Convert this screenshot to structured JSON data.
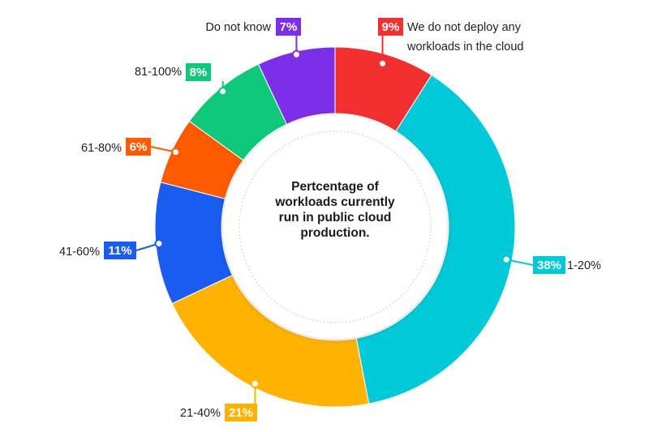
{
  "chart_data": {
    "type": "pie",
    "title": "Pertcentage of workloads currently run in public cloud production.",
    "title_lines": [
      "Pertcentage of",
      "workloads currently",
      "run in public cloud",
      "production."
    ],
    "categories": [
      "We do not deploy any workloads in the cloud",
      "1-20%",
      "21-40%",
      "41-60%",
      "61-80%",
      "81-100%",
      "Do not know"
    ],
    "values": [
      9,
      38,
      21,
      11,
      6,
      8,
      7
    ],
    "value_labels": [
      "9%",
      "38%",
      "21%",
      "11%",
      "6%",
      "8%",
      "7%"
    ],
    "label_lines": [
      [
        "We do not deploy any",
        "workloads in the cloud"
      ],
      [
        "1-20%"
      ],
      [
        "21-40%"
      ],
      [
        "41-60%"
      ],
      [
        "61-80%"
      ],
      [
        "81-100%"
      ],
      [
        "Do not know"
      ]
    ],
    "colors": [
      "#f23030",
      "#00c9d8",
      "#ffb300",
      "#1a5cf0",
      "#ff5a00",
      "#0ec97a",
      "#7d2ee8"
    ],
    "style": "donut",
    "legend": "none"
  }
}
